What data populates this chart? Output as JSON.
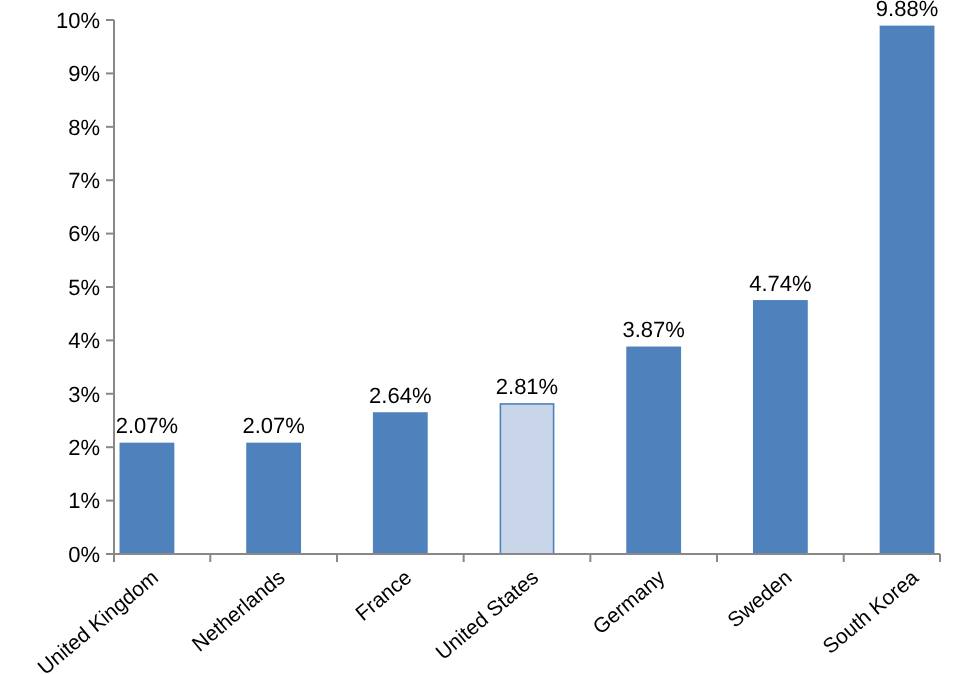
{
  "chart_data": {
    "type": "bar",
    "categories": [
      "United Kingdom",
      "Netherlands",
      "France",
      "United States",
      "Germany",
      "Sweden",
      "South Korea"
    ],
    "values": [
      2.07,
      2.07,
      2.64,
      2.81,
      3.87,
      4.74,
      9.88
    ],
    "value_labels": [
      "2.07%",
      "2.07%",
      "2.64%",
      "2.81%",
      "3.87%",
      "4.74%",
      "9.88%"
    ],
    "colors": [
      "#4f81bd",
      "#4f81bd",
      "#4f81bd",
      "#c9d6ea",
      "#4f81bd",
      "#4f81bd",
      "#4f81bd"
    ],
    "ylim": [
      0,
      10
    ],
    "yticks": [
      {
        "value": 0,
        "label": "0%"
      },
      {
        "value": 1,
        "label": "1%"
      },
      {
        "value": 2,
        "label": "2%"
      },
      {
        "value": 3,
        "label": "3%"
      },
      {
        "value": 4,
        "label": "4%"
      },
      {
        "value": 5,
        "label": "5%"
      },
      {
        "value": 6,
        "label": "6%"
      },
      {
        "value": 7,
        "label": "7%"
      },
      {
        "value": 8,
        "label": "8%"
      },
      {
        "value": 9,
        "label": "9%"
      },
      {
        "value": 10,
        "label": "10%"
      }
    ],
    "grid": false
  }
}
